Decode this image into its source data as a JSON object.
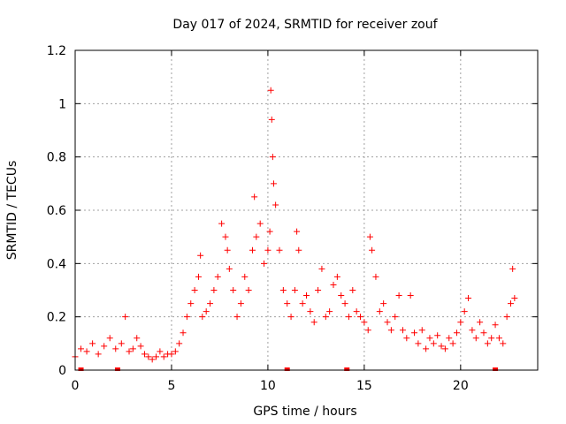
{
  "chart_data": {
    "type": "scatter",
    "title": "Day 017 of 2024, SRMTID for receiver zouf",
    "xlabel": "GPS time / hours",
    "ylabel": "SRMTID / TECUs",
    "xlim": [
      0,
      24
    ],
    "ylim": [
      0,
      1.2
    ],
    "xticks": [
      0,
      5,
      10,
      15,
      20
    ],
    "yticks": [
      0,
      0.2,
      0.4,
      0.6,
      0.8,
      1,
      1.2
    ],
    "xtick_labels": [
      "0",
      "5",
      "10",
      "15",
      "20"
    ],
    "ytick_labels": [
      "0",
      "0.2",
      "0.4",
      "0.6",
      "0.8",
      "1",
      "1.2"
    ],
    "grid": true,
    "marker": "+",
    "color": "#ff0000",
    "series": [
      {
        "name": "SRMTID",
        "x": [
          0.0,
          0.3,
          0.6,
          0.9,
          1.2,
          1.5,
          1.8,
          2.1,
          2.4,
          2.6,
          2.8,
          3.0,
          3.2,
          3.4,
          3.6,
          3.8,
          4.0,
          4.2,
          4.4,
          4.6,
          4.8,
          5.0,
          5.2,
          5.4,
          5.6,
          5.8,
          6.0,
          6.2,
          6.4,
          6.5,
          6.6,
          6.8,
          7.0,
          7.2,
          7.4,
          7.6,
          7.8,
          7.9,
          8.0,
          8.2,
          8.4,
          8.6,
          8.8,
          9.0,
          9.2,
          9.3,
          9.4,
          9.6,
          9.8,
          10.0,
          10.1,
          10.15,
          10.2,
          10.25,
          10.3,
          10.4,
          10.6,
          10.8,
          11.0,
          11.2,
          11.4,
          11.5,
          11.6,
          11.8,
          12.0,
          12.2,
          12.4,
          12.6,
          12.8,
          13.0,
          13.2,
          13.4,
          13.6,
          13.8,
          14.0,
          14.2,
          14.4,
          14.6,
          14.8,
          15.0,
          15.2,
          15.3,
          15.4,
          15.6,
          15.8,
          16.0,
          16.2,
          16.4,
          16.6,
          16.8,
          17.0,
          17.2,
          17.4,
          17.6,
          17.8,
          18.0,
          18.2,
          18.4,
          18.6,
          18.8,
          19.0,
          19.2,
          19.4,
          19.6,
          19.8,
          20.0,
          20.2,
          20.4,
          20.6,
          20.8,
          21.0,
          21.2,
          21.4,
          21.6,
          21.8,
          22.0,
          22.2,
          22.4,
          22.6,
          22.7,
          22.8
        ],
        "y": [
          0.05,
          0.08,
          0.07,
          0.1,
          0.06,
          0.09,
          0.12,
          0.08,
          0.1,
          0.2,
          0.07,
          0.08,
          0.12,
          0.09,
          0.06,
          0.05,
          0.04,
          0.05,
          0.07,
          0.05,
          0.06,
          0.06,
          0.07,
          0.1,
          0.14,
          0.2,
          0.25,
          0.3,
          0.35,
          0.43,
          0.2,
          0.22,
          0.25,
          0.3,
          0.35,
          0.55,
          0.5,
          0.45,
          0.38,
          0.3,
          0.2,
          0.25,
          0.35,
          0.3,
          0.45,
          0.65,
          0.5,
          0.55,
          0.4,
          0.45,
          0.52,
          1.05,
          0.94,
          0.8,
          0.7,
          0.62,
          0.45,
          0.3,
          0.25,
          0.2,
          0.3,
          0.52,
          0.45,
          0.25,
          0.28,
          0.22,
          0.18,
          0.3,
          0.38,
          0.2,
          0.22,
          0.32,
          0.35,
          0.28,
          0.25,
          0.2,
          0.3,
          0.22,
          0.2,
          0.18,
          0.15,
          0.5,
          0.45,
          0.35,
          0.22,
          0.25,
          0.18,
          0.15,
          0.2,
          0.28,
          0.15,
          0.12,
          0.28,
          0.14,
          0.1,
          0.15,
          0.08,
          0.12,
          0.1,
          0.13,
          0.09,
          0.08,
          0.12,
          0.1,
          0.14,
          0.18,
          0.22,
          0.27,
          0.15,
          0.12,
          0.18,
          0.14,
          0.1,
          0.12,
          0.17,
          0.12,
          0.1,
          0.2,
          0.25,
          0.38,
          0.27
        ],
        "near_zero_x": [
          0.3,
          2.2,
          11.0,
          14.1,
          21.8
        ]
      }
    ]
  }
}
